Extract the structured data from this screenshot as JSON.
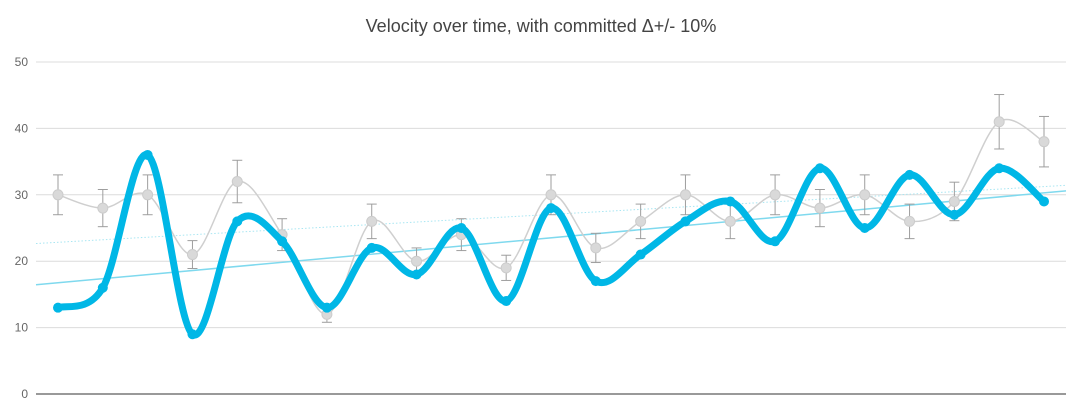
{
  "chart_data": {
    "type": "line",
    "title": "Velocity over time, with committed Δ+/- 10%",
    "xlabel": "",
    "ylabel": "",
    "ylim": [
      0,
      50
    ],
    "y_ticks": [
      0,
      10,
      20,
      30,
      40,
      50
    ],
    "grid": true,
    "legend": "none",
    "x": [
      1,
      2,
      3,
      4,
      5,
      6,
      7,
      8,
      9,
      10,
      11,
      12,
      13,
      14,
      15,
      16,
      17,
      18,
      19,
      20,
      21,
      22,
      23
    ],
    "series": [
      {
        "role": "committed",
        "color": "#cfcfcf",
        "values": [
          30,
          28,
          30,
          21,
          32,
          24,
          12,
          26,
          20,
          24,
          19,
          30,
          22,
          26,
          30,
          26,
          30,
          28,
          30,
          26,
          29,
          41,
          38
        ],
        "error_bars": "±10%",
        "error_color": "#9e9e9e"
      },
      {
        "role": "actual",
        "color": "#00b7e6",
        "values": [
          13,
          16,
          36,
          9,
          26,
          23,
          13,
          22,
          18,
          25,
          14,
          28,
          17,
          21,
          26,
          29,
          23,
          34,
          25,
          33,
          27,
          34,
          29
        ]
      }
    ],
    "trendlines": [
      {
        "of": "actual",
        "color": "#7fd9ee",
        "style": "solid"
      },
      {
        "of": "committed",
        "color": "#a8e6f2",
        "style": "dotted"
      }
    ]
  }
}
